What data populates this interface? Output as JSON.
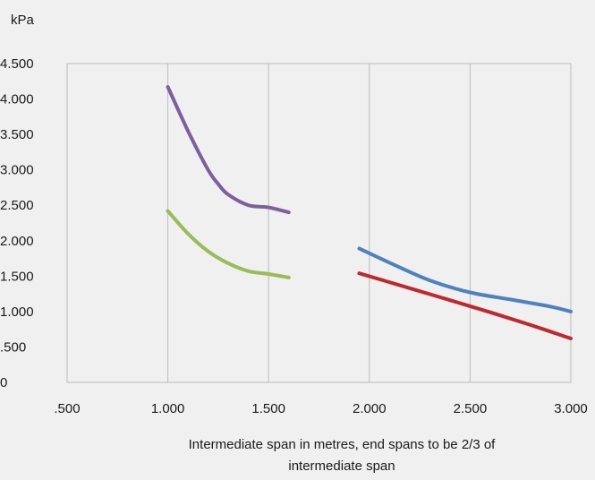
{
  "chart_data": {
    "type": "line",
    "ylabel": "kPa",
    "xlabel_lines": [
      "Intermediate span in metres, end spans to be 2/3 of",
      "intermediate span"
    ],
    "xlim": [
      0.5,
      3.0
    ],
    "ylim": [
      0,
      4.5
    ],
    "x_ticks": [
      0.5,
      1.0,
      1.5,
      2.0,
      2.5,
      3.0
    ],
    "x_tick_labels": [
      ".500",
      "1.000",
      "1.500",
      "2.000",
      "2.500",
      "3.000"
    ],
    "y_ticks": [
      0,
      0.5,
      1.0,
      1.5,
      2.0,
      2.5,
      3.0,
      3.5,
      4.0,
      4.5
    ],
    "y_tick_labels": [
      "0",
      ".500",
      "1.000",
      "1.500",
      "2.000",
      "2.500",
      "3.000",
      "3.500",
      "4.000",
      "4.500"
    ],
    "grid": "vertical",
    "series": [
      {
        "color": "#7d5fa0",
        "x": [
          1.0,
          1.1,
          1.2,
          1.25,
          1.3,
          1.4,
          1.5,
          1.6
        ],
        "y": [
          4.17,
          3.55,
          3.0,
          2.8,
          2.65,
          2.5,
          2.47,
          2.4
        ]
      },
      {
        "color": "#9bbb59",
        "x": [
          1.0,
          1.1,
          1.2,
          1.3,
          1.4,
          1.5,
          1.6
        ],
        "y": [
          2.42,
          2.1,
          1.85,
          1.68,
          1.57,
          1.53,
          1.48
        ]
      },
      {
        "color": "#4f81bd",
        "x": [
          1.95,
          2.1,
          2.3,
          2.5,
          2.7,
          2.9,
          3.0
        ],
        "y": [
          1.89,
          1.69,
          1.44,
          1.27,
          1.17,
          1.07,
          1.0
        ]
      },
      {
        "color": "#c0282e",
        "x": [
          1.95,
          2.2,
          2.4,
          2.6,
          2.8,
          3.0
        ],
        "y": [
          1.54,
          1.33,
          1.16,
          0.99,
          0.81,
          0.62
        ]
      }
    ]
  }
}
